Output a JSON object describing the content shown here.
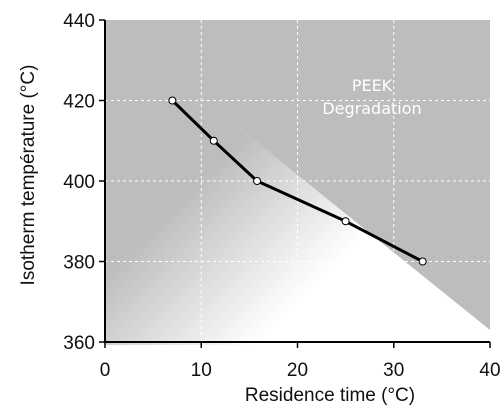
{
  "chart_data": {
    "type": "line",
    "title": "",
    "xlabel": "Residence time (°C)",
    "ylabel": "Isotherm température (°C)",
    "xlim": [
      0,
      40
    ],
    "ylim": [
      360,
      440
    ],
    "xticks": [
      "0",
      "10",
      "20",
      "30",
      "40"
    ],
    "yticks": [
      "360",
      "380",
      "400",
      "420",
      "440"
    ],
    "grid": true,
    "series": [
      {
        "x": [
          7,
          11.3,
          15.8,
          25,
          33
        ],
        "y": [
          420,
          410,
          400,
          390,
          380
        ]
      }
    ],
    "annotations": [
      {
        "lines": [
          "PEEK",
          "Degradation"
        ],
        "region": "shaded upper-right"
      }
    ],
    "colors": {
      "line": "#000000",
      "region": "#bdbdbd"
    }
  }
}
